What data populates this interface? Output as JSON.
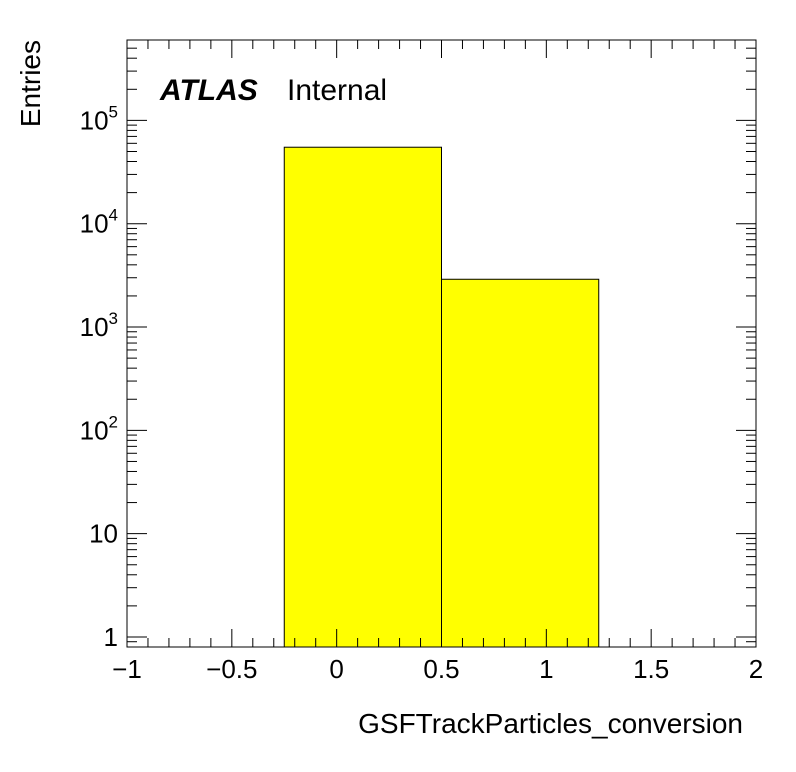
{
  "chart_data": {
    "type": "bar",
    "histogram": true,
    "bins": [
      {
        "x_low": -0.25,
        "x_high": 0.5,
        "value": 55000
      },
      {
        "x_low": 0.5,
        "x_high": 1.25,
        "value": 2900
      }
    ],
    "xlabel": "GSFTrackParticles_conversion",
    "ylabel": "Entries",
    "xlim": [
      -1,
      2
    ],
    "ylim": [
      0.8,
      600000
    ],
    "y_scale": "log",
    "grid": false,
    "x_ticks": [
      {
        "value": -1,
        "label": "−1"
      },
      {
        "value": -0.5,
        "label": "−0.5"
      },
      {
        "value": 0,
        "label": "0"
      },
      {
        "value": 0.5,
        "label": "0.5"
      },
      {
        "value": 1,
        "label": "1"
      },
      {
        "value": 1.5,
        "label": "1.5"
      },
      {
        "value": 2,
        "label": "2"
      }
    ],
    "y_ticks": [
      {
        "value": 1,
        "base": "1",
        "exp": ""
      },
      {
        "value": 10,
        "base": "10",
        "exp": ""
      },
      {
        "value": 100,
        "base": "10",
        "exp": "2"
      },
      {
        "value": 1000,
        "base": "10",
        "exp": "3"
      },
      {
        "value": 10000,
        "base": "10",
        "exp": "4"
      },
      {
        "value": 100000,
        "base": "10",
        "exp": "5"
      }
    ],
    "fill_color": "#ffff00",
    "line_color": "#000000",
    "annotations": {
      "experiment": "ATLAS",
      "status": "Internal"
    }
  }
}
